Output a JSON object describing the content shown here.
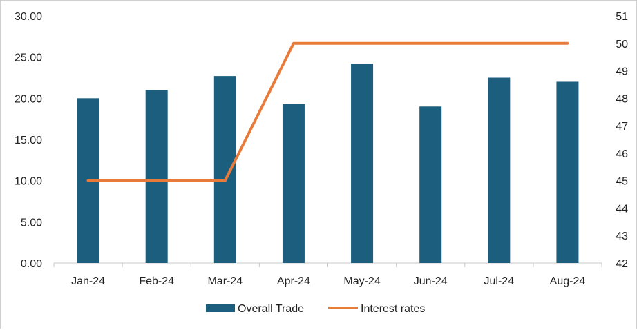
{
  "chart_data": {
    "type": "bar",
    "categories": [
      "Jan-24",
      "Feb-24",
      "Mar-24",
      "Apr-24",
      "May-24",
      "Jun-24",
      "Jul-24",
      "Aug-24"
    ],
    "series": [
      {
        "name": "Overall Trade",
        "type": "bar",
        "axis": "left",
        "color": "#1b5e7e",
        "values": [
          20.0,
          21.0,
          22.7,
          19.3,
          24.2,
          19.0,
          22.5,
          22.0
        ]
      },
      {
        "name": "Interest rates",
        "type": "line",
        "axis": "right",
        "color": "#e87a3a",
        "values": [
          45,
          45,
          45,
          50,
          50,
          50,
          50,
          50
        ]
      }
    ],
    "y_left": {
      "min": 0,
      "max": 30,
      "ticks": [
        "0.00",
        "5.00",
        "10.00",
        "15.00",
        "20.00",
        "25.00",
        "30.00"
      ]
    },
    "y_right": {
      "min": 42,
      "max": 51,
      "ticks": [
        "42",
        "43",
        "44",
        "45",
        "46",
        "47",
        "48",
        "49",
        "50",
        "51"
      ]
    },
    "title": "",
    "xlabel": "",
    "ylabel": "",
    "grid": false,
    "legend_position": "bottom"
  }
}
